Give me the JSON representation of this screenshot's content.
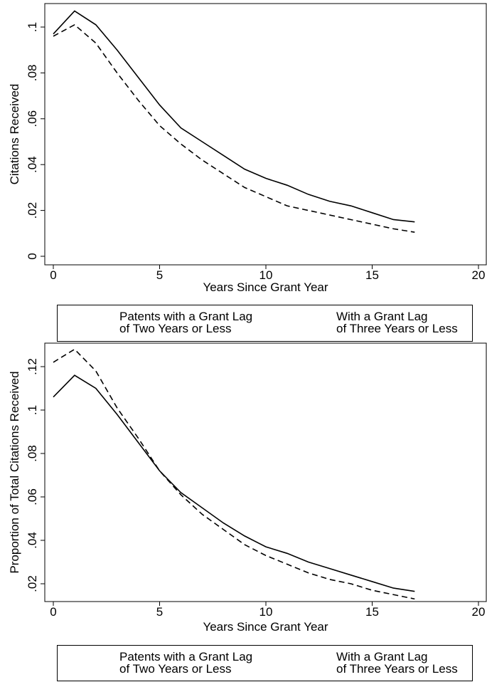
{
  "chart_data": [
    {
      "type": "line",
      "xlabel": "Years Since Grant Year",
      "ylabel": "Citations Received",
      "x": [
        0,
        1,
        2,
        3,
        4,
        5,
        6,
        7,
        8,
        9,
        10,
        11,
        12,
        13,
        14,
        15,
        16,
        17
      ],
      "xlim": [
        0,
        20
      ],
      "xticks": [
        0,
        5,
        10,
        15,
        20
      ],
      "ylim": [
        0,
        0.1
      ],
      "yticks": [
        0,
        {
          "value": 0.02,
          "label": ".02"
        },
        {
          "value": 0.04,
          "label": ".04"
        },
        {
          "value": 0.06,
          "label": ".06"
        },
        {
          "value": 0.08,
          "label": ".08"
        },
        {
          "value": 0.1,
          "label": ".1"
        }
      ],
      "series": [
        {
          "name": "Patents with a Grant Lag\nof Two Years or Less",
          "color": "#000000",
          "dash": "solid",
          "values": [
            0.097,
            0.107,
            0.101,
            0.09,
            0.078,
            0.066,
            0.056,
            0.05,
            0.044,
            0.038,
            0.034,
            0.031,
            0.027,
            0.024,
            0.022,
            0.019,
            0.016,
            0.015
          ]
        },
        {
          "name": "With a Grant Lag\nof Three Years or Less",
          "color": "#000000",
          "dash": "dashed",
          "values": [
            0.096,
            0.101,
            0.093,
            0.08,
            0.068,
            0.057,
            0.049,
            0.042,
            0.036,
            0.03,
            0.026,
            0.022,
            0.02,
            0.018,
            0.016,
            0.014,
            0.012,
            0.0105
          ]
        }
      ]
    },
    {
      "type": "line",
      "xlabel": "Years Since Grant Year",
      "ylabel": "Proportion of Total Citations Received",
      "x": [
        0,
        1,
        2,
        3,
        4,
        5,
        6,
        7,
        8,
        9,
        10,
        11,
        12,
        13,
        14,
        15,
        16,
        17
      ],
      "xlim": [
        0,
        20
      ],
      "xticks": [
        0,
        5,
        10,
        15,
        20
      ],
      "ylim": [
        0.02,
        0.12
      ],
      "yticks": [
        {
          "value": 0.02,
          "label": ".02"
        },
        {
          "value": 0.04,
          "label": ".04"
        },
        {
          "value": 0.06,
          "label": ".06"
        },
        {
          "value": 0.08,
          "label": ".08"
        },
        {
          "value": 0.1,
          "label": ".1"
        },
        {
          "value": 0.12,
          "label": ".12"
        }
      ],
      "series": [
        {
          "name": "Patents with a Grant Lag\nof Two Years or Less",
          "color": "#000000",
          "dash": "solid",
          "values": [
            0.106,
            0.116,
            0.11,
            0.098,
            0.085,
            0.072,
            0.062,
            0.055,
            0.048,
            0.042,
            0.037,
            0.034,
            0.03,
            0.027,
            0.024,
            0.021,
            0.018,
            0.0165
          ]
        },
        {
          "name": "With a Grant Lag\nof Three Years or Less",
          "color": "#000000",
          "dash": "dashed",
          "values": [
            0.122,
            0.128,
            0.118,
            0.101,
            0.087,
            0.072,
            0.061,
            0.052,
            0.045,
            0.038,
            0.033,
            0.029,
            0.025,
            0.022,
            0.02,
            0.017,
            0.015,
            0.013
          ]
        }
      ]
    }
  ]
}
